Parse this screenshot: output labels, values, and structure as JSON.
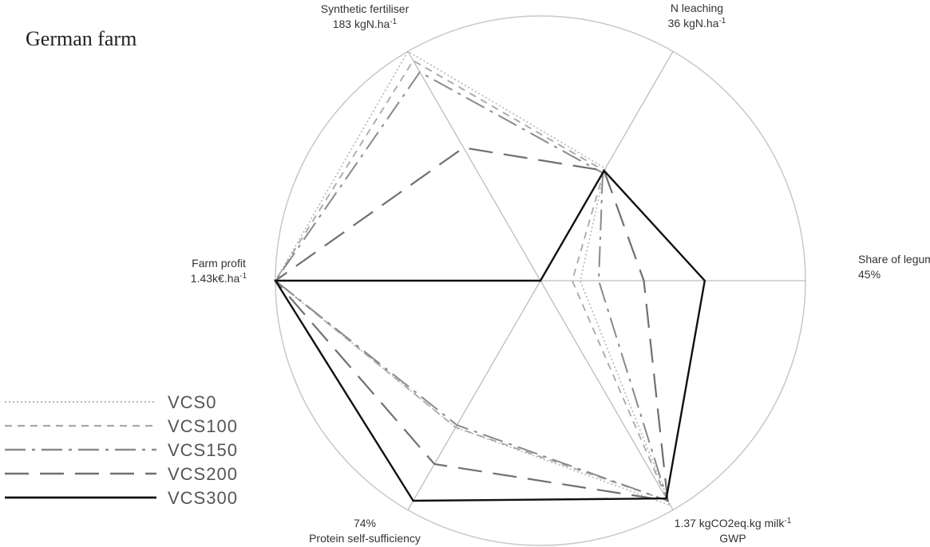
{
  "title": "German farm",
  "chart_data": {
    "type": "radar",
    "axes": [
      {
        "key": "n_leaching",
        "lines": [
          "N leaching",
          "36 kgN.ha-1"
        ]
      },
      {
        "key": "share_legumes",
        "lines": [
          "Share of legumes",
          "45%"
        ]
      },
      {
        "key": "gwp",
        "lines": [
          "1.37 kgCO2eq.kg milk-1",
          "GWP"
        ]
      },
      {
        "key": "protein_self_sufficiency",
        "lines": [
          "74%",
          "Protein self-sufficiency"
        ]
      },
      {
        "key": "farm_profit",
        "lines": [
          "Farm profit",
          "1.43k€.ha-1"
        ]
      },
      {
        "key": "synthetic_fertiliser",
        "lines": [
          "Synthetic fertiliser",
          "183 kgN.ha-1"
        ]
      }
    ],
    "range": [
      0,
      1
    ],
    "series": [
      {
        "name": "VCS0",
        "style": "dotted",
        "color": "#b5b5b5",
        "values": [
          0.49,
          0.15,
          0.98,
          0.64,
          1.0,
          1.0
        ]
      },
      {
        "name": "VCS100",
        "style": "short-dash",
        "color": "#a8a8a8",
        "values": [
          0.48,
          0.12,
          0.96,
          0.64,
          1.0,
          0.96
        ]
      },
      {
        "name": "VCS150",
        "style": "dash-dot",
        "color": "#8a8a8a",
        "values": [
          0.47,
          0.22,
          0.96,
          0.63,
          1.0,
          0.91
        ]
      },
      {
        "name": "VCS200",
        "style": "long-dash",
        "color": "#707070",
        "values": [
          0.48,
          0.39,
          0.96,
          0.8,
          1.0,
          0.58
        ]
      },
      {
        "name": "VCS300",
        "style": "solid",
        "color": "#111111",
        "values": [
          0.48,
          0.62,
          0.95,
          0.96,
          1.0,
          0.0
        ]
      }
    ]
  }
}
